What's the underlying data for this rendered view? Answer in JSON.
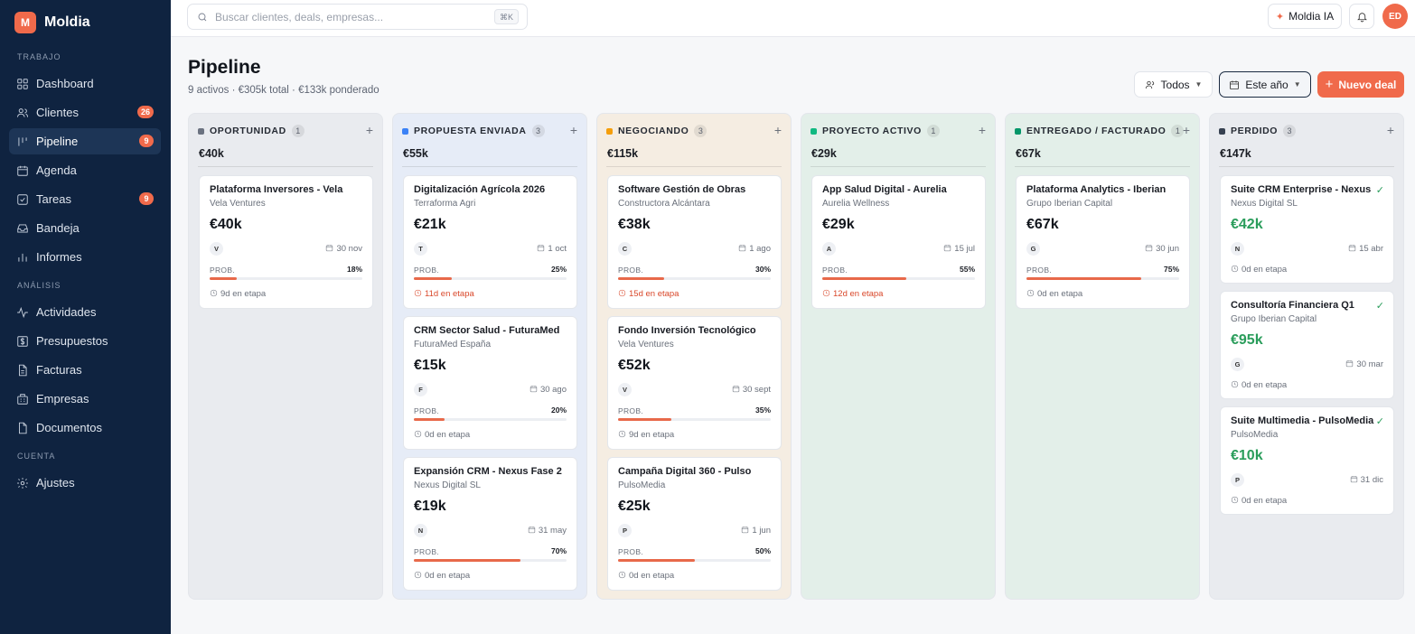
{
  "brand": {
    "name": "Moldia",
    "logo": "M"
  },
  "sidebar": {
    "sections": [
      {
        "title": "TRABAJO",
        "items": [
          {
            "label": "Dashboard",
            "icon": "grid-icon"
          },
          {
            "label": "Clientes",
            "icon": "users-icon",
            "badge": "26"
          },
          {
            "label": "Pipeline",
            "icon": "pipeline-icon",
            "badge": "9",
            "active": true
          },
          {
            "label": "Agenda",
            "icon": "calendar-icon"
          },
          {
            "label": "Tareas",
            "icon": "checkbox-icon",
            "badge": "9"
          },
          {
            "label": "Bandeja",
            "icon": "inbox-icon"
          },
          {
            "label": "Informes",
            "icon": "bar-chart-icon"
          }
        ]
      },
      {
        "title": "ANÁLISIS",
        "items": [
          {
            "label": "Actividades",
            "icon": "activity-icon"
          },
          {
            "label": "Presupuestos",
            "icon": "dollar-icon"
          },
          {
            "label": "Facturas",
            "icon": "file-icon"
          },
          {
            "label": "Empresas",
            "icon": "building-icon"
          },
          {
            "label": "Documentos",
            "icon": "document-icon"
          }
        ]
      },
      {
        "title": "CUENTA",
        "items": [
          {
            "label": "Ajustes",
            "icon": "gear-icon"
          }
        ]
      }
    ]
  },
  "topbar": {
    "search_placeholder": "Buscar clientes, deals, empresas...",
    "search_shortcut": "⌘K",
    "ai_label": "Moldia IA",
    "avatar_initials": "ED"
  },
  "page": {
    "title": "Pipeline",
    "subtitle": "9 activos · €305k total · €133k ponderado",
    "filter_label": "Todos",
    "period_label": "Este año",
    "new_deal_label": "Nuevo deal"
  },
  "columns": [
    {
      "name": "OPORTUNIDAD",
      "count": "1",
      "total": "€40k",
      "dot": "#6b7280",
      "bg": "#e9ebef",
      "cards": [
        {
          "title": "Plataforma Inversores - Vela",
          "company": "Vela Ventures",
          "amount": "€40k",
          "initial": "V",
          "date": "30 nov",
          "prob_label": "PROB.",
          "prob": "18%",
          "prob_value": 18,
          "stage": "9d en etapa",
          "warn": false
        }
      ]
    },
    {
      "name": "PROPUESTA ENVIADA",
      "count": "3",
      "total": "€55k",
      "dot": "#3b82f6",
      "bg": "#e6ecf7",
      "cards": [
        {
          "title": "Digitalización Agrícola 2026",
          "company": "Terraforma Agri",
          "amount": "€21k",
          "initial": "T",
          "date": "1 oct",
          "prob_label": "PROB.",
          "prob": "25%",
          "prob_value": 25,
          "stage": "11d en etapa",
          "warn": true
        },
        {
          "title": "CRM Sector Salud - FuturaMed",
          "company": "FuturaMed España",
          "amount": "€15k",
          "initial": "F",
          "date": "30 ago",
          "prob_label": "PROB.",
          "prob": "20%",
          "prob_value": 20,
          "stage": "0d en etapa",
          "warn": false
        },
        {
          "title": "Expansión CRM - Nexus Fase 2",
          "company": "Nexus Digital SL",
          "amount": "€19k",
          "initial": "N",
          "date": "31 may",
          "prob_label": "PROB.",
          "prob": "70%",
          "prob_value": 70,
          "stage": "0d en etapa",
          "warn": false
        }
      ]
    },
    {
      "name": "NEGOCIANDO",
      "count": "3",
      "total": "€115k",
      "dot": "#f59e0b",
      "bg": "#f5ede2",
      "cards": [
        {
          "title": "Software Gestión de Obras",
          "company": "Constructora Alcántara",
          "amount": "€38k",
          "initial": "C",
          "date": "1 ago",
          "prob_label": "PROB.",
          "prob": "30%",
          "prob_value": 30,
          "stage": "15d en etapa",
          "warn": true
        },
        {
          "title": "Fondo Inversión Tecnológico",
          "company": "Vela Ventures",
          "amount": "€52k",
          "initial": "V",
          "date": "30 sept",
          "prob_label": "PROB.",
          "prob": "35%",
          "prob_value": 35,
          "stage": "9d en etapa",
          "warn": false
        },
        {
          "title": "Campaña Digital 360 - Pulso",
          "company": "PulsoMedia",
          "amount": "€25k",
          "initial": "P",
          "date": "1 jun",
          "prob_label": "PROB.",
          "prob": "50%",
          "prob_value": 50,
          "stage": "0d en etapa",
          "warn": false
        }
      ]
    },
    {
      "name": "PROYECTO ACTIVO",
      "count": "1",
      "total": "€29k",
      "dot": "#10b981",
      "bg": "#e3efe9",
      "cards": [
        {
          "title": "App Salud Digital - Aurelia",
          "company": "Aurelia Wellness",
          "amount": "€29k",
          "initial": "A",
          "date": "15 jul",
          "prob_label": "PROB.",
          "prob": "55%",
          "prob_value": 55,
          "stage": "12d en etapa",
          "warn": true
        }
      ]
    },
    {
      "name": "ENTREGADO / FACTURADO",
      "count": "1",
      "total": "€67k",
      "dot": "#059669",
      "bg": "#e3efe9",
      "cards": [
        {
          "title": "Plataforma Analytics - Iberian",
          "company": "Grupo Iberian Capital",
          "amount": "€67k",
          "initial": "G",
          "date": "30 jun",
          "prob_label": "PROB.",
          "prob": "75%",
          "prob_value": 75,
          "stage": "0d en etapa",
          "warn": false
        }
      ]
    },
    {
      "name": "PERDIDO",
      "count": "3",
      "total": "€147k",
      "dot": "#374151",
      "bg": "#e9ebef",
      "cards": [
        {
          "title": "Suite CRM Enterprise - Nexus",
          "company": "Nexus Digital SL",
          "amount": "€42k",
          "initial": "N",
          "date": "15 abr",
          "stage": "0d en etapa",
          "won": true
        },
        {
          "title": "Consultoría Financiera Q1",
          "company": "Grupo Iberian Capital",
          "amount": "€95k",
          "initial": "G",
          "date": "30 mar",
          "stage": "0d en etapa",
          "won": true
        },
        {
          "title": "Suite Multimedia - PulsoMedia",
          "company": "PulsoMedia",
          "amount": "€10k",
          "initial": "P",
          "date": "31 dic",
          "stage": "0d en etapa",
          "won": true
        }
      ]
    }
  ],
  "colors": {
    "accent": "#f06a4b",
    "sidebar_bg": "#0f2340",
    "won_green": "#2a9d5b",
    "warn_red": "#d9482b"
  }
}
